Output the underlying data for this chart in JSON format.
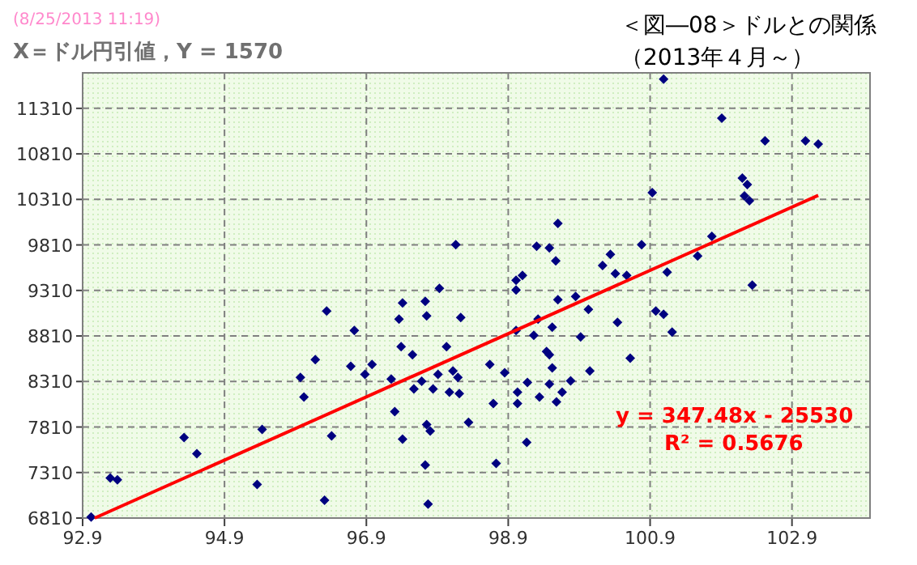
{
  "chart_data": {
    "type": "scatter",
    "title": "＜図―08＞ドルとの関係",
    "subtitle": "X＝ドル円引値，Y = 1570",
    "annotations": [
      "(8/25/2013 11:19)",
      "（2013年４月～）",
      "y = 347.48x - 25530",
      "R² = 0.5676"
    ],
    "xlim": [
      92.9,
      104.0
    ],
    "ylim": [
      6810,
      11700
    ],
    "xticks": [
      92.9,
      94.9,
      96.9,
      98.9,
      100.9,
      102.9
    ],
    "yticks": [
      6810,
      7310,
      7810,
      8310,
      8810,
      9310,
      9810,
      10310,
      10810,
      11310
    ],
    "grid": true,
    "series": [
      {
        "type": "scatter",
        "marker": "diamond",
        "color": "#000080",
        "x": [
          93.02,
          93.29,
          93.39,
          94.33,
          94.51,
          95.36,
          95.43,
          95.97,
          96.02,
          96.18,
          96.31,
          96.34,
          96.41,
          96.68,
          96.73,
          96.88,
          96.98,
          97.25,
          97.3,
          97.36,
          97.41,
          97.39,
          97.41,
          97.55,
          97.57,
          97.68,
          97.73,
          97.75,
          97.73,
          97.75,
          97.8,
          97.77,
          97.84,
          97.91,
          97.93,
          98.03,
          98.07,
          98.12,
          98.16,
          98.19,
          98.21,
          98.23,
          98.34,
          101.09,
          101.91,
          102.52,
          103.09,
          103.27,
          102.2,
          102.27,
          102.23,
          102.3,
          100.93,
          101.77,
          101.57,
          100.78,
          99.6,
          99.3,
          99.48,
          99.57,
          100.34,
          100.23,
          100.41,
          100.57,
          101.14,
          99.1,
          99.01,
          99.01,
          102.34,
          99.6,
          99.85,
          100.03,
          99.32,
          99.52,
          99.01,
          99.26,
          99.92,
          100.44,
          100.98,
          101.09,
          101.21,
          100.62,
          98.64,
          98.85,
          99.44,
          99.48,
          99.52,
          100.05,
          99.17,
          99.48,
          99.78,
          99.34,
          99.66,
          99.58,
          99.03,
          99.03,
          98.69,
          99.16,
          98.73
        ],
        "values": [
          6822,
          7249,
          7231,
          7695,
          7517,
          7178,
          7784,
          8354,
          8140,
          8550,
          7006,
          9084,
          7712,
          8478,
          8870,
          8389,
          8496,
          8336,
          7980,
          8995,
          9173,
          8692,
          7677,
          8603,
          8229,
          8312,
          9191,
          9030,
          7392,
          7837,
          7766,
          6964,
          8229,
          8389,
          9333,
          8692,
          8193,
          8425,
          9814,
          8354,
          8176,
          9013,
          7861,
          11631,
          11203,
          10954,
          10954,
          10918,
          10544,
          10473,
          10348,
          10295,
          10384,
          9903,
          9689,
          9814,
          10046,
          9796,
          9778,
          9636,
          9707,
          9583,
          9494,
          9476,
          9511,
          9476,
          9422,
          9315,
          9369,
          9209,
          9244,
          9102,
          8995,
          8906,
          8870,
          8817,
          8799,
          8959,
          9084,
          9048,
          8852,
          8567,
          8496,
          8407,
          8639,
          8603,
          8460,
          8425,
          8300,
          8282,
          8318,
          8140,
          8193,
          8086,
          8193,
          8069,
          8069,
          7641,
          7410
        ]
      },
      {
        "type": "line",
        "marker": "none",
        "color": "#ff0000",
        "x": [
          93.07,
          103.27
        ],
        "values": [
          6810,
          10354
        ]
      }
    ]
  }
}
